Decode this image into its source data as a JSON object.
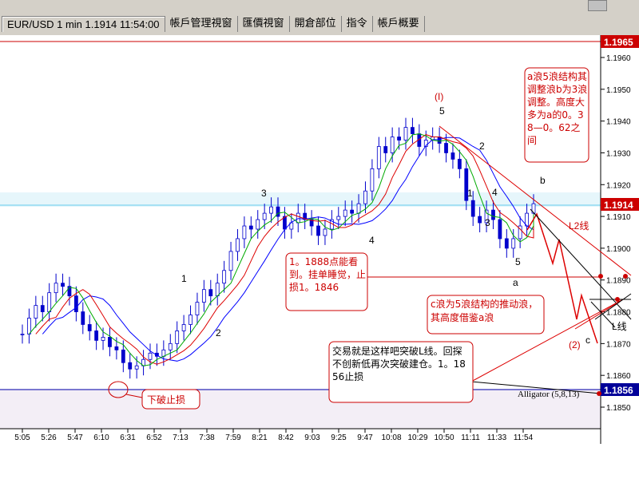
{
  "tabs": [
    {
      "label": "EUR/USD 1 min 1.1914 11:54:00",
      "active": true
    },
    {
      "label": "帳戶管理視窗",
      "active": false
    },
    {
      "label": "匯價視窗",
      "active": false
    },
    {
      "label": "開倉部位",
      "active": false
    },
    {
      "label": "指令",
      "active": false
    },
    {
      "label": "帳戶概要",
      "active": false
    }
  ],
  "colors": {
    "up_fill": "#ffffff",
    "candle": "#0000cc",
    "ma_blue": "#0000ff",
    "ma_red": "#dd0000",
    "ma_green": "#00aa00",
    "note_border": "#cc0000",
    "tag_red": "#cc0000",
    "tag_blue": "#000099",
    "support_band": "#f3eef6",
    "current_band": "#d8f0f8"
  },
  "chart_data": {
    "type": "candlestick",
    "symbol": "EUR/USD",
    "timeframe": "1 min",
    "price_axis": {
      "ticks": [
        "1.1960",
        "1.1950",
        "1.1940",
        "1.1930",
        "1.1920",
        "1.1910",
        "1.1900",
        "1.1890",
        "1.1880",
        "1.1870",
        "1.1860",
        "1.1850"
      ],
      "range": [
        1.1845,
        1.197
      ]
    },
    "time_axis": {
      "ticks": [
        "5:05",
        "5:26",
        "5:47",
        "6:10",
        "6:31",
        "6:52",
        "7:13",
        "7:38",
        "7:59",
        "8:21",
        "8:42",
        "9:03",
        "9:25",
        "9:47",
        "10:08",
        "10:29",
        "10:50",
        "11:11",
        "11:33",
        "11:54"
      ]
    },
    "closes": [
      1.1873,
      1.1878,
      1.1882,
      1.188,
      1.1886,
      1.1889,
      1.1888,
      1.1885,
      1.188,
      1.1876,
      1.1874,
      1.1871,
      1.1872,
      1.1869,
      1.1868,
      1.1864,
      1.1862,
      1.1863,
      1.1865,
      1.1867,
      1.1866,
      1.1868,
      1.187,
      1.1874,
      1.1876,
      1.1879,
      1.1883,
      1.1887,
      1.1885,
      1.1889,
      1.1893,
      1.1899,
      1.1903,
      1.1907,
      1.1906,
      1.1909,
      1.1911,
      1.1913,
      1.191,
      1.1906,
      1.1908,
      1.1911,
      1.1909,
      1.1907,
      1.1904,
      1.1906,
      1.1909,
      1.191,
      1.1912,
      1.1911,
      1.1914,
      1.1918,
      1.1925,
      1.1932,
      1.193,
      1.1935,
      1.1934,
      1.1938,
      1.1936,
      1.1932,
      1.1934,
      1.1935,
      1.1933,
      1.193,
      1.1928,
      1.1925,
      1.1915,
      1.191,
      1.1908,
      1.1912,
      1.1909,
      1.1903,
      1.19,
      1.1903,
      1.1907,
      1.1911,
      1.1914
    ],
    "price_tags": [
      {
        "label": "1.1965",
        "price": 1.1965,
        "color": "red"
      },
      {
        "label": "1.1914",
        "price": 1.1914,
        "color": "red"
      },
      {
        "label": "1.1856",
        "price": 1.1856,
        "color": "blue"
      }
    ],
    "indicator": {
      "label": "Alligator (5,8,13)"
    },
    "wave_labels": [
      "(I)",
      "5",
      "2",
      "1",
      "4",
      "3",
      "5",
      "b",
      "a",
      "3",
      "4",
      "1",
      "2",
      "c",
      "(2)",
      "L线",
      "L2线"
    ],
    "annotations": [
      {
        "text": "a浪5浪结构其调整浪b为3浪调整。高度大多为a的0。38—0。62之间"
      },
      {
        "text": "1。1888点能看到。挂单睡觉，止损1。1846"
      },
      {
        "text": "c浪为5浪结构的推动浪，其高度借鉴a浪"
      },
      {
        "text": "交易就是这样吧突破L线。回探不创新低再次突破建仓。1。1856止损"
      },
      {
        "text": "下破止损"
      }
    ]
  }
}
